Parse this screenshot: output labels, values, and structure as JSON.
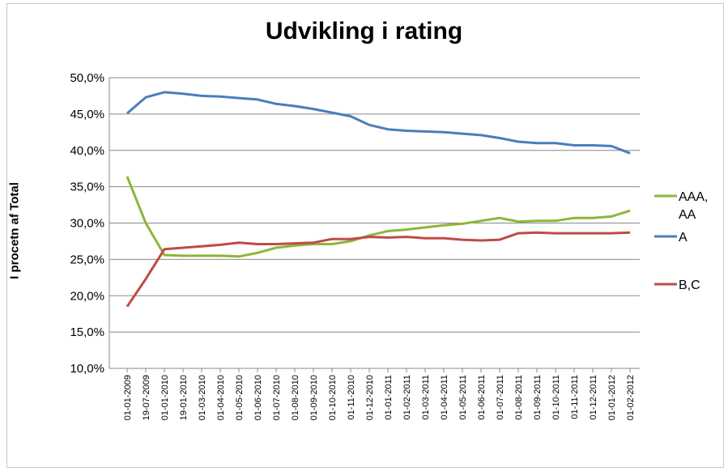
{
  "chart_data": {
    "type": "line",
    "title": "Udvikling i rating",
    "ylabel": "I procetn af Total",
    "xlabel": "",
    "ylim": [
      10,
      50
    ],
    "yticks": [
      "10,0%",
      "15,0%",
      "20,0%",
      "25,0%",
      "30,0%",
      "35,0%",
      "40,0%",
      "45,0%",
      "50,0%"
    ],
    "grid": "horizontal",
    "legend_position": "right",
    "categories": [
      "01-01-2009",
      "19-07-2009",
      "01-01-2010",
      "19-01-2010",
      "01-03-2010",
      "01-04-2010",
      "01-05-2010",
      "01-06-2010",
      "01-07-2010",
      "01-08-2010",
      "01-09-2010",
      "01-10-2010",
      "01-11-2010",
      "01-12-2010",
      "01-01-2011",
      "01-02-2011",
      "01-03-2011",
      "01-04-2011",
      "01-05-2011",
      "01-06-2011",
      "01-07-2011",
      "01-08-2011",
      "01-09-2011",
      "01-10-2011",
      "01-11-2011",
      "01-12-2011",
      "01-01-2012",
      "01-02-2012"
    ],
    "series": [
      {
        "name": "AAA, AA",
        "legend_lines": [
          "AAA,",
          "AA"
        ],
        "color": "#8db53b",
        "values": [
          36.4,
          30.0,
          25.6,
          25.5,
          25.5,
          25.5,
          25.4,
          25.9,
          26.6,
          26.9,
          27.1,
          27.1,
          27.5,
          28.3,
          28.9,
          29.1,
          29.4,
          29.7,
          29.9,
          30.3,
          30.7,
          30.2,
          30.3,
          30.3,
          30.7,
          30.7,
          30.9,
          31.7
        ]
      },
      {
        "name": "A",
        "legend_lines": [
          "A"
        ],
        "color": "#4a7ebb",
        "values": [
          45.1,
          47.3,
          48.0,
          47.8,
          47.5,
          47.4,
          47.2,
          47.0,
          46.4,
          46.1,
          45.7,
          45.2,
          44.7,
          43.5,
          42.9,
          42.7,
          42.6,
          42.5,
          42.3,
          42.1,
          41.7,
          41.2,
          41.0,
          41.0,
          40.7,
          40.7,
          40.6,
          39.6
        ]
      },
      {
        "name": "B,C",
        "legend_lines": [
          "B,C"
        ],
        "color": "#be4b48",
        "values": [
          18.5,
          22.3,
          26.4,
          26.6,
          26.8,
          27.0,
          27.3,
          27.1,
          27.1,
          27.2,
          27.3,
          27.8,
          27.8,
          28.1,
          28.0,
          28.1,
          27.9,
          27.9,
          27.7,
          27.6,
          27.7,
          28.6,
          28.7,
          28.6,
          28.6,
          28.6,
          28.6,
          28.7
        ]
      }
    ]
  }
}
